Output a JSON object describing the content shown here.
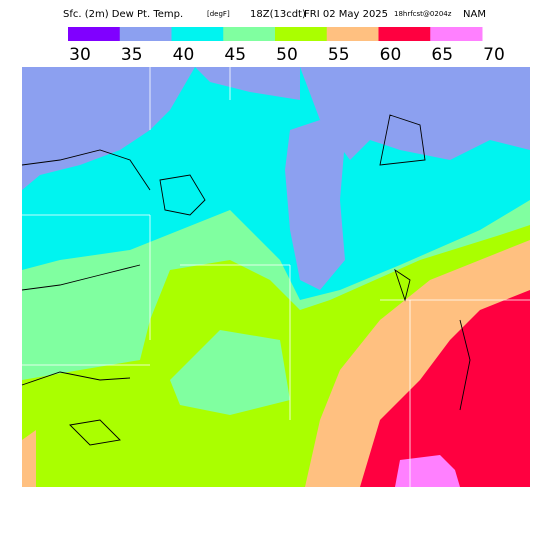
{
  "header": {
    "title": [
      "Sfc. (2m) Dew Pt. Temp.",
      "[degF]",
      "18Z(13cdt)",
      "FRI 02 May 2025",
      "18hrfcst@0204z",
      "NAM"
    ]
  },
  "legend": {
    "ticks": [
      30,
      35,
      40,
      45,
      50,
      55,
      60,
      65,
      70
    ],
    "colors": [
      "#8000ff",
      "#8ca0f0",
      "#00f4f0",
      "#80ffa0",
      "#aaff00",
      "#ffc080",
      "#ff0040",
      "#ff80ff"
    ]
  }
}
